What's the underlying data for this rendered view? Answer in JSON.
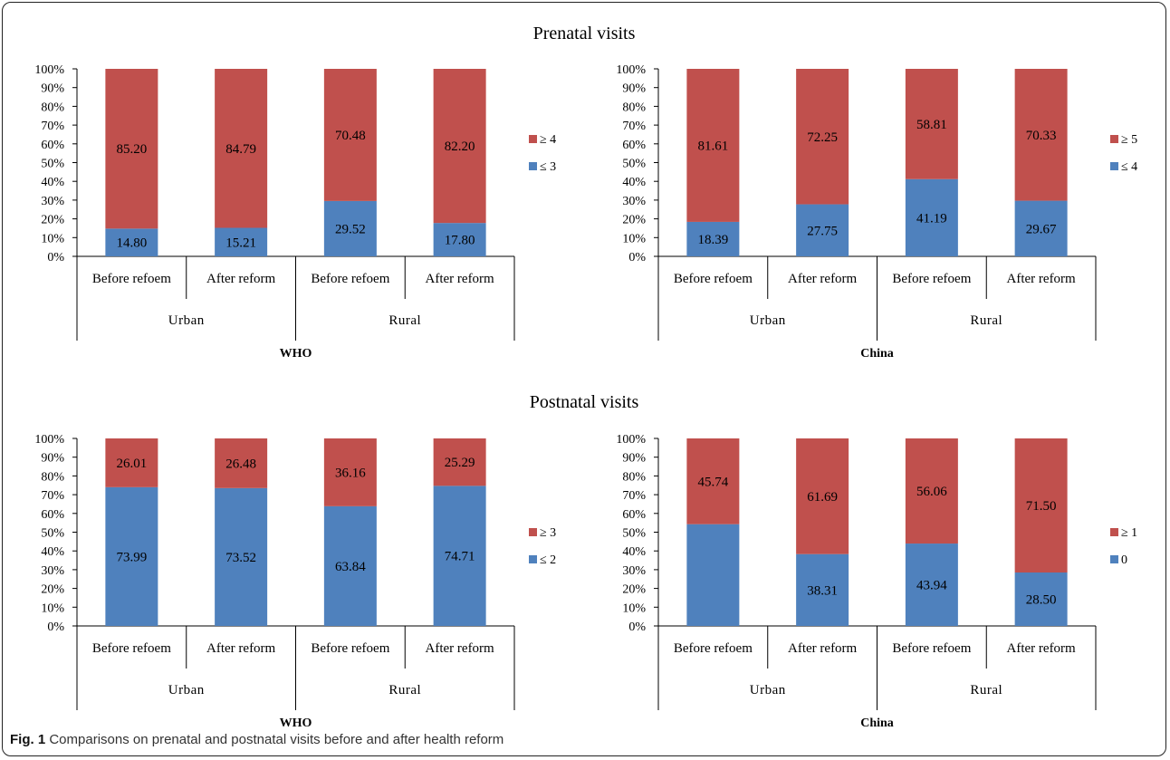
{
  "figure": {
    "label": "Fig. 1",
    "text": "Comparisons on prenatal and postnatal visits before and after health reform",
    "colors": {
      "lower": "#4f81bd",
      "upper": "#c0504d"
    }
  },
  "sections": [
    {
      "title": "Prenatal visits"
    },
    {
      "title": "Postnatal visits"
    }
  ],
  "chart_data": [
    {
      "type": "bar",
      "stacked": true,
      "section": "Prenatal visits",
      "subtitle": "WHO",
      "groups": [
        "Urban",
        "Rural"
      ],
      "categories": [
        "Before refoem",
        "After reform",
        "Before refoem",
        "After reform"
      ],
      "ylim": [
        0,
        100
      ],
      "yticks": [
        "0%",
        "10%",
        "20%",
        "30%",
        "40%",
        "50%",
        "60%",
        "70%",
        "80%",
        "90%",
        "100%"
      ],
      "legend_position": "right",
      "series": [
        {
          "name": "≤ 3",
          "color": "#4f81bd",
          "values": [
            14.8,
            15.21,
            29.52,
            17.8
          ],
          "labels": [
            "14.80",
            "15.21",
            "29.52",
            "17.80"
          ]
        },
        {
          "name": "≥ 4",
          "color": "#c0504d",
          "values": [
            85.2,
            84.79,
            70.48,
            82.2
          ],
          "labels": [
            "85.20",
            "84.79",
            "70.48",
            "82.20"
          ]
        }
      ]
    },
    {
      "type": "bar",
      "stacked": true,
      "section": "Prenatal visits",
      "subtitle": "China",
      "groups": [
        "Urban",
        "Rural"
      ],
      "categories": [
        "Before refoem",
        "After reform",
        "Before refoem",
        "After reform"
      ],
      "ylim": [
        0,
        100
      ],
      "yticks": [
        "0%",
        "10%",
        "20%",
        "30%",
        "40%",
        "50%",
        "60%",
        "70%",
        "80%",
        "90%",
        "100%"
      ],
      "legend_position": "right",
      "series": [
        {
          "name": "≤ 4",
          "color": "#4f81bd",
          "values": [
            18.39,
            27.75,
            41.19,
            29.67
          ],
          "labels": [
            "18.39",
            "27.75",
            "41.19",
            "29.67"
          ]
        },
        {
          "name": "≥ 5",
          "color": "#c0504d",
          "values": [
            81.61,
            72.25,
            58.81,
            70.33
          ],
          "labels": [
            "81.61",
            "72.25",
            "58.81",
            "70.33"
          ]
        }
      ]
    },
    {
      "type": "bar",
      "stacked": true,
      "section": "Postnatal visits",
      "subtitle": "WHO",
      "groups": [
        "Urban",
        "Rural"
      ],
      "categories": [
        "Before refoem",
        "After reform",
        "Before refoem",
        "After reform"
      ],
      "ylim": [
        0,
        100
      ],
      "yticks": [
        "0%",
        "10%",
        "20%",
        "30%",
        "40%",
        "50%",
        "60%",
        "70%",
        "80%",
        "90%",
        "100%"
      ],
      "legend_position": "right",
      "series": [
        {
          "name": "≤ 2",
          "color": "#4f81bd",
          "values": [
            73.99,
            73.52,
            63.84,
            74.71
          ],
          "labels": [
            "73.99",
            "73.52",
            "63.84",
            "74.71"
          ]
        },
        {
          "name": "≥ 3",
          "color": "#c0504d",
          "values": [
            26.01,
            26.48,
            36.16,
            25.29
          ],
          "labels": [
            "26.01",
            "26.48",
            "36.16",
            "25.29"
          ]
        }
      ]
    },
    {
      "type": "bar",
      "stacked": true,
      "section": "Postnatal visits",
      "subtitle": "China",
      "groups": [
        "Urban",
        "Rural"
      ],
      "categories": [
        "Before refoem",
        "After reform",
        "Before refoem",
        "After reform"
      ],
      "ylim": [
        0,
        100
      ],
      "yticks": [
        "0%",
        "10%",
        "20%",
        "30%",
        "40%",
        "50%",
        "60%",
        "70%",
        "80%",
        "90%",
        "100%"
      ],
      "legend_position": "right",
      "series": [
        {
          "name": "0",
          "color": "#4f81bd",
          "values": [
            54.26,
            38.31,
            43.94,
            28.5
          ],
          "labels": [
            "",
            "38.31",
            "43.94",
            "28.50"
          ]
        },
        {
          "name": "≥ 1",
          "color": "#c0504d",
          "values": [
            45.74,
            61.69,
            56.06,
            71.5
          ],
          "labels": [
            "45.74",
            "61.69",
            "56.06",
            "71.50"
          ]
        }
      ]
    }
  ]
}
